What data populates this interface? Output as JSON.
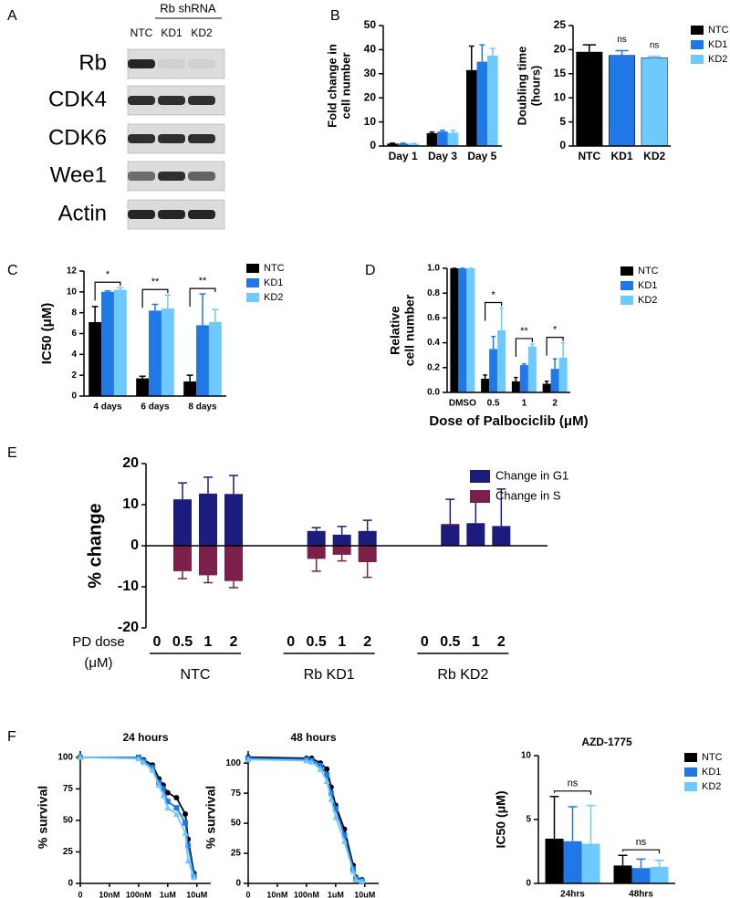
{
  "panels": [
    "A",
    "B",
    "C",
    "D",
    "E",
    "F"
  ],
  "blot": {
    "group": "Rb shRNA",
    "lanes": [
      "NTC",
      "KD1",
      "KD2"
    ],
    "rows": [
      "Rb",
      "CDK4",
      "CDK6",
      "Wee1",
      "Actin"
    ]
  },
  "chart_data": [
    {
      "type": "bar",
      "ylabel": [
        "Fold change in",
        "cell number"
      ],
      "categories": [
        "Day 1",
        "Day 3",
        "Day 5"
      ],
      "series": [
        {
          "color": "#000000",
          "values": [
            1,
            5.3,
            31.5
          ],
          "errors": [
            0.2,
            0.5,
            10
          ]
        },
        {
          "color": "#1f78e6",
          "values": [
            1,
            6,
            35
          ],
          "errors": [
            0.2,
            0.5,
            7
          ]
        },
        {
          "color": "#6ec9ff",
          "values": [
            0.9,
            5.5,
            37.5
          ],
          "errors": [
            0.2,
            1,
            3
          ]
        }
      ],
      "ylim": [
        0,
        50
      ],
      "yticks": [
        0,
        10,
        20,
        30,
        40,
        50
      ]
    },
    {
      "type": "bar",
      "ylabel": [
        "Doubling time",
        "(hours)"
      ],
      "categories": [
        "NTC",
        "KD1",
        "KD2"
      ],
      "values": [
        19.5,
        18.8,
        18.3
      ],
      "errors": [
        1.5,
        1,
        0.3
      ],
      "colors": [
        "#000000",
        "#1f78e6",
        "#6ec9ff"
      ],
      "annotations": [
        {
          "category": "KD1",
          "text": "ns"
        },
        {
          "category": "KD2",
          "text": "ns"
        }
      ],
      "ylim": [
        0,
        25
      ],
      "yticks": [
        0,
        5,
        10,
        15,
        20,
        25
      ],
      "legend": "right"
    },
    {
      "type": "bar",
      "ylabel": "IC50 (μM)",
      "categories": [
        "4 days",
        "6 days",
        "8 days"
      ],
      "series": [
        {
          "name": "NTC",
          "color": "#000000",
          "values": [
            7.1,
            1.7,
            1.4
          ],
          "errors": [
            1.5,
            0.2,
            0.6
          ]
        },
        {
          "name": "KD1",
          "color": "#1f78e6",
          "values": [
            10,
            8.2,
            6.8
          ],
          "errors": [
            0.1,
            0.6,
            3
          ]
        },
        {
          "name": "KD2",
          "color": "#6ec9ff",
          "values": [
            10.2,
            8.4,
            7.1
          ],
          "errors": [
            0.2,
            1.3,
            1.2
          ]
        }
      ],
      "annotations": [
        {
          "category": "4 days",
          "text": "*"
        },
        {
          "category": "6 days",
          "text": "**"
        },
        {
          "category": "8 days",
          "text": "**"
        }
      ],
      "ylim": [
        0,
        12
      ],
      "yticks": [
        0,
        2,
        4,
        6,
        8,
        10,
        12
      ]
    },
    {
      "type": "bar",
      "ylabel": [
        "Relative",
        "cell number"
      ],
      "xlabel": "Dose of Palbociclib (μM)",
      "categories": [
        "DMSO",
        "0.5",
        "1",
        "2"
      ],
      "series": [
        {
          "name": "NTC",
          "color": "#000000",
          "values": [
            1,
            0.11,
            0.09,
            0.07
          ],
          "errors": [
            0,
            0.03,
            0.03,
            0.02
          ]
        },
        {
          "name": "KD1",
          "color": "#1f78e6",
          "values": [
            1,
            0.35,
            0.22,
            0.19
          ],
          "errors": [
            0,
            0.1,
            0.01,
            0.08
          ]
        },
        {
          "name": "KD2",
          "color": "#6ec9ff",
          "values": [
            1,
            0.5,
            0.37,
            0.28
          ],
          "errors": [
            0,
            0.18,
            0.02,
            0.12
          ]
        }
      ],
      "annotations": [
        {
          "category": "0.5",
          "text": "*"
        },
        {
          "category": "1",
          "text": "**"
        },
        {
          "category": "2",
          "text": "*"
        }
      ],
      "ylim": [
        0,
        1
      ],
      "yticks": [
        {
          "value": 0,
          "label": "0.0"
        },
        0.2,
        0.4,
        0.6,
        0.8,
        {
          "value": 1,
          "label": "1.0"
        }
      ]
    },
    {
      "type": "diverging",
      "ylabel": "% change",
      "xlabel": [
        "PD dose",
        "(μM)"
      ],
      "categories": [
        "0",
        "0.5",
        "1",
        "2",
        "0",
        "0.5",
        "1",
        "2",
        "0",
        "0.5",
        "1",
        "2"
      ],
      "groups": [
        "NTC",
        "Rb KD1",
        "Rb KD2"
      ],
      "series": [
        {
          "name": "Change in G1",
          "color": "#1c1c7c",
          "values": [
            null,
            11.3,
            12.7,
            12.6,
            null,
            3.6,
            2.7,
            3.6,
            null,
            5,
            5.5,
            4.8
          ],
          "errors": [
            null,
            4,
            4,
            4.5,
            null,
            0.8,
            2,
            2.6,
            null,
            6.3,
            7.3,
            9
          ]
        },
        {
          "name": "Change in S",
          "color": "#7b1f4b",
          "values": [
            null,
            -6.2,
            -7.2,
            -8.6,
            null,
            -3.2,
            -2.2,
            -4,
            null,
            5.3,
            null,
            null
          ],
          "errors": [
            null,
            1.8,
            1.8,
            1.6,
            null,
            3,
            1.5,
            3.7,
            null,
            null,
            null,
            null
          ]
        }
      ],
      "ylim": [
        -20,
        20
      ],
      "yticks": [
        -20,
        -10,
        0,
        10,
        20
      ]
    },
    {
      "type": "line",
      "title": "24 hours",
      "ylabel": "% survival",
      "xscale": "log",
      "x": [
        1,
        100,
        150,
        300,
        500,
        700,
        1000,
        2000,
        4000,
        5000,
        8000
      ],
      "series": [
        {
          "color": "#000000",
          "marker": "circle",
          "values": [
            100,
            100,
            98,
            94,
            83,
            78,
            72,
            68,
            55,
            35,
            8
          ]
        },
        {
          "color": "#1f78e6",
          "marker": "square",
          "values": [
            100,
            100,
            97,
            92,
            80,
            75,
            65,
            60,
            48,
            30,
            6
          ]
        },
        {
          "color": "#6ec9ff",
          "marker": "triangle",
          "values": [
            100,
            99,
            96,
            90,
            78,
            70,
            60,
            55,
            40,
            18,
            5
          ]
        }
      ],
      "xlim": [
        1,
        30000
      ],
      "xticks": [
        {
          "value": 1,
          "label": "0"
        },
        {
          "value": 10,
          "label": "10nM"
        },
        {
          "value": 100,
          "label": "100nM"
        },
        {
          "value": 1000,
          "label": "1uM"
        },
        {
          "value": 10000,
          "label": "10uM"
        }
      ],
      "ylim": [
        0,
        105
      ],
      "yticks": [
        0,
        25,
        50,
        75,
        100
      ]
    },
    {
      "type": "line",
      "title": "48 hours",
      "ylabel": "% survival",
      "xscale": "log",
      "x": [
        1,
        100,
        150,
        300,
        500,
        700,
        1000,
        2000,
        4000,
        5000,
        8000
      ],
      "series": [
        {
          "color": "#000000",
          "marker": "circle",
          "values": [
            105,
            104,
            104,
            100,
            95,
            80,
            65,
            45,
            15,
            5,
            3
          ]
        },
        {
          "color": "#1f78e6",
          "marker": "square",
          "values": [
            104,
            103,
            102,
            98,
            90,
            75,
            62,
            40,
            12,
            4,
            2
          ]
        },
        {
          "color": "#6ec9ff",
          "marker": "triangle",
          "values": [
            103,
            102,
            101,
            95,
            85,
            70,
            55,
            35,
            10,
            3,
            2
          ]
        }
      ],
      "xlim": [
        1,
        30000
      ],
      "xticks": [
        {
          "value": 1,
          "label": "0"
        },
        {
          "value": 10,
          "label": "10nM"
        },
        {
          "value": 100,
          "label": "100nM"
        },
        {
          "value": 1000,
          "label": "1uM"
        },
        {
          "value": 10000,
          "label": "10uM"
        }
      ],
      "ylim": [
        0,
        110
      ],
      "yticks": [
        0,
        25,
        50,
        75,
        100
      ]
    },
    {
      "type": "bar",
      "title": "AZD-1775",
      "ylabel": "IC50 (μM)",
      "categories": [
        "24hrs",
        "48hrs"
      ],
      "series": [
        {
          "name": "NTC",
          "color": "#000000",
          "values": [
            3.5,
            1.4
          ],
          "errors": [
            3.3,
            0.8
          ]
        },
        {
          "name": "KD1",
          "color": "#1f78e6",
          "values": [
            3.3,
            1.2
          ],
          "errors": [
            2.7,
            0.7
          ]
        },
        {
          "name": "KD2",
          "color": "#6ec9ff",
          "values": [
            3.1,
            1.3
          ],
          "errors": [
            3,
            0.5
          ]
        }
      ],
      "annotations": [
        {
          "category": "24hrs",
          "text": "ns"
        },
        {
          "category": "48hrs",
          "text": "ns"
        }
      ],
      "ylim": [
        0,
        10
      ],
      "yticks": [
        0,
        5,
        10
      ]
    }
  ]
}
